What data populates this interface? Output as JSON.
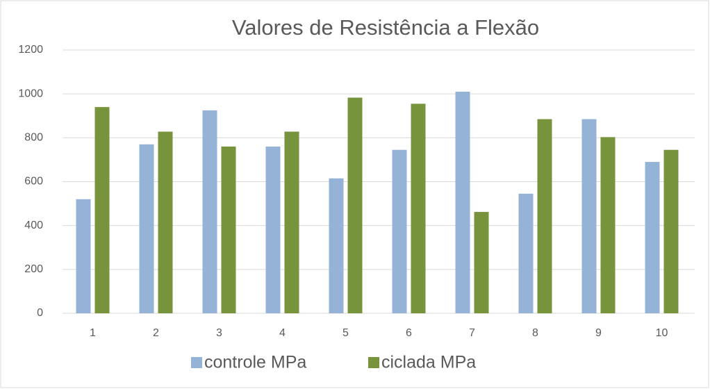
{
  "chart_data": {
    "type": "bar",
    "title": "Valores de Resistência a Flexão",
    "categories": [
      "1",
      "2",
      "3",
      "4",
      "5",
      "6",
      "7",
      "8",
      "9",
      "10"
    ],
    "series": [
      {
        "name": "controle MPa",
        "color": "#95b3d7",
        "values": [
          520,
          770,
          925,
          760,
          615,
          745,
          1010,
          545,
          885,
          690
        ]
      },
      {
        "name": "ciclada MPa",
        "color": "#77933c",
        "values": [
          940,
          828,
          760,
          828,
          983,
          955,
          462,
          885,
          803,
          745
        ]
      }
    ],
    "ylim": [
      0,
      1200
    ],
    "yticks": [
      0,
      200,
      400,
      600,
      800,
      1000,
      1200
    ],
    "grid": true,
    "legend": "bottom"
  }
}
